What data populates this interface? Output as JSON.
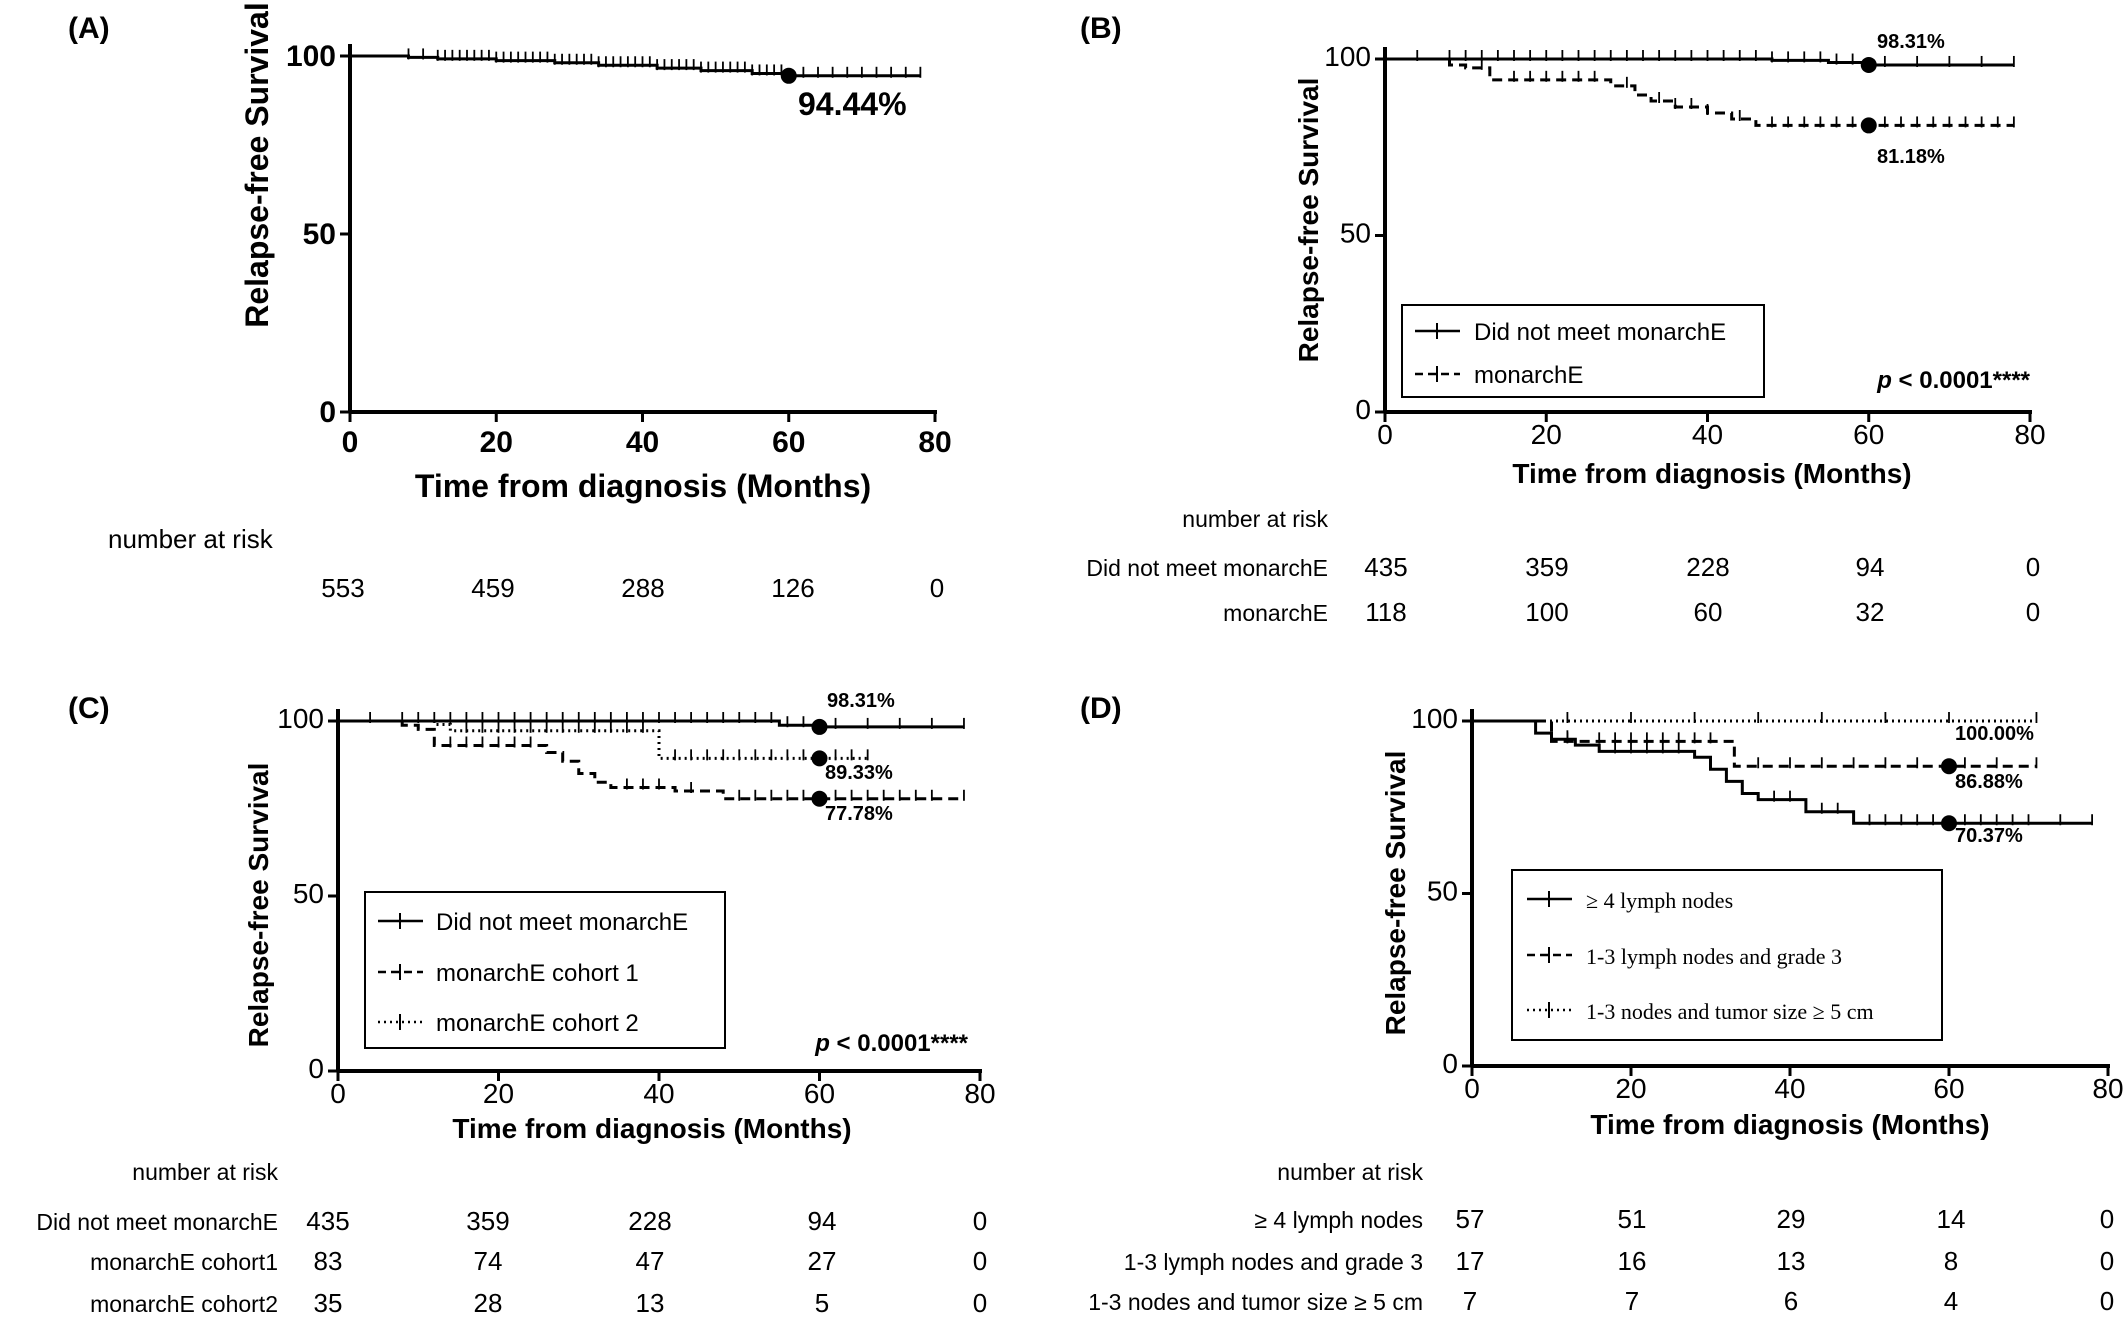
{
  "chart_data": [
    {
      "panel": "(A)",
      "type": "line",
      "title": "",
      "xlabel": "Time from diagnosis (Months)",
      "ylabel": "Relapse-free Survival",
      "xlim": [
        0,
        80
      ],
      "ylim": [
        0,
        100
      ],
      "xticks": [
        "0",
        "20",
        "40",
        "60",
        "80"
      ],
      "yticks": [
        "0",
        "50",
        "100"
      ],
      "series": [
        {
          "style": "solid",
          "x": [
            0,
            8,
            12,
            20,
            28,
            34,
            42,
            48,
            55,
            60,
            78
          ],
          "y": [
            100,
            99.6,
            99.2,
            98.7,
            98.1,
            97.4,
            96.6,
            95.9,
            95.1,
            94.44,
            94.44
          ],
          "censor_x": [
            8,
            10,
            12,
            13,
            14,
            15,
            16,
            17,
            18,
            19,
            20,
            21,
            22,
            23,
            24,
            25,
            26,
            27,
            28,
            29,
            30,
            31,
            32,
            33,
            34,
            35,
            36,
            37,
            38,
            39,
            40,
            41,
            42,
            43,
            44,
            45,
            46,
            47,
            48,
            49,
            50,
            51,
            52,
            53,
            54,
            55,
            56,
            57,
            58,
            59,
            62,
            64,
            66,
            68,
            70,
            72,
            74,
            76,
            78
          ]
        }
      ],
      "marker": {
        "x": 60,
        "y": 94.44
      },
      "annotations": [
        "94.44%"
      ],
      "risk_table": {
        "header": "number at risk",
        "rows": [
          {
            "label": "",
            "values": [
              "553",
              "459",
              "288",
              "126",
              "0"
            ]
          }
        ]
      }
    },
    {
      "panel": "(B)",
      "type": "line",
      "title": "",
      "xlabel": "Time from diagnosis (Months)",
      "ylabel": "Relapse-free Survival",
      "xlim": [
        0,
        80
      ],
      "ylim": [
        0,
        100
      ],
      "xticks": [
        "0",
        "20",
        "40",
        "60",
        "80"
      ],
      "yticks": [
        "0",
        "50",
        "100"
      ],
      "series": [
        {
          "name": "Did not meet monarchE",
          "style": "solid",
          "x": [
            0,
            48,
            55,
            60,
            78
          ],
          "y": [
            100,
            99.6,
            99,
            98.31,
            98.31
          ],
          "censor_x": [
            4,
            8,
            10,
            12,
            14,
            16,
            18,
            20,
            22,
            24,
            26,
            28,
            30,
            32,
            34,
            36,
            38,
            40,
            42,
            44,
            46,
            48,
            50,
            52,
            54,
            56,
            58,
            62,
            66,
            70,
            74,
            78
          ]
        },
        {
          "name": "monarchE",
          "style": "dashed",
          "x": [
            0,
            8,
            10,
            13,
            28,
            31,
            33,
            36,
            40,
            43,
            46,
            60,
            78
          ],
          "y": [
            100,
            98.3,
            97.5,
            94.1,
            92.4,
            89.8,
            88.1,
            86.4,
            84.7,
            83,
            81.18,
            81.18,
            81.18
          ],
          "censor_x": [
            12,
            16,
            18,
            20,
            22,
            24,
            26,
            30,
            34,
            36,
            38,
            40,
            44,
            48,
            50,
            52,
            54,
            56,
            58,
            62,
            64,
            66,
            68,
            70,
            72,
            74,
            76,
            78
          ]
        }
      ],
      "markers": [
        {
          "x": 60,
          "y": 98.31
        },
        {
          "x": 60,
          "y": 81.18
        }
      ],
      "annotations": [
        "98.31%",
        "81.18%"
      ],
      "pvalue": {
        "label": "p",
        "rest": " < 0.0001****"
      },
      "risk_table": {
        "header": "number at risk",
        "rows": [
          {
            "label": "Did not meet monarchE",
            "values": [
              "435",
              "359",
              "228",
              "94",
              "0"
            ]
          },
          {
            "label": "monarchE",
            "values": [
              "118",
              "100",
              "60",
              "32",
              "0"
            ]
          }
        ]
      }
    },
    {
      "panel": "(C)",
      "type": "line",
      "title": "",
      "xlabel": "Time from diagnosis (Months)",
      "ylabel": "Relapse-free Survival",
      "xlim": [
        0,
        80
      ],
      "ylim": [
        0,
        100
      ],
      "xticks": [
        "0",
        "20",
        "40",
        "60",
        "80"
      ],
      "yticks": [
        "0",
        "50",
        "100"
      ],
      "series": [
        {
          "name": "Did not meet monarchE",
          "style": "solid",
          "x": [
            0,
            55,
            60,
            78
          ],
          "y": [
            100,
            98.8,
            98.31,
            98.31
          ],
          "censor_x": [
            4,
            8,
            10,
            12,
            14,
            16,
            18,
            20,
            22,
            24,
            26,
            28,
            30,
            32,
            34,
            36,
            38,
            40,
            42,
            44,
            46,
            48,
            50,
            52,
            54,
            56,
            58,
            62,
            66,
            70,
            74,
            78
          ]
        },
        {
          "name": "monarchE cohort 1",
          "style": "dashed",
          "x": [
            0,
            8,
            10,
            12,
            26,
            28,
            30,
            32,
            34,
            42,
            48,
            60,
            78
          ],
          "y": [
            100,
            98.8,
            97.6,
            93,
            91,
            88.5,
            85,
            82.5,
            81,
            80,
            77.78,
            77.78,
            77.78
          ],
          "censor_x": [
            14,
            16,
            18,
            20,
            22,
            24,
            36,
            38,
            40,
            44,
            50,
            52,
            54,
            56,
            58,
            62,
            64,
            66,
            68,
            70,
            72,
            74,
            78
          ]
        },
        {
          "name": "monarchE cohort 2",
          "style": "dotted",
          "x": [
            0,
            12,
            14,
            40,
            60,
            66
          ],
          "y": [
            100,
            99,
            97.2,
            89.33,
            89.33,
            89.33
          ],
          "censor_x": [
            16,
            18,
            20,
            22,
            24,
            26,
            28,
            30,
            32,
            34,
            36,
            38,
            42,
            44,
            46,
            48,
            50,
            52,
            54,
            56,
            58,
            62,
            64,
            66
          ]
        }
      ],
      "markers": [
        {
          "x": 60,
          "y": 98.31
        },
        {
          "x": 60,
          "y": 89.33
        },
        {
          "x": 60,
          "y": 77.78
        }
      ],
      "annotations": [
        "98.31%",
        "89.33%",
        "77.78%"
      ],
      "pvalue": {
        "label": "p",
        "rest": " < 0.0001****"
      },
      "risk_table": {
        "header": "number at risk",
        "rows": [
          {
            "label": "Did not meet monarchE",
            "values": [
              "435",
              "359",
              "228",
              "94",
              "0"
            ]
          },
          {
            "label": "monarchE cohort1",
            "values": [
              "83",
              "74",
              "47",
              "27",
              "0"
            ]
          },
          {
            "label": "monarchE cohort2",
            "values": [
              "35",
              "28",
              "13",
              "5",
              "0"
            ]
          }
        ]
      }
    },
    {
      "panel": "(D)",
      "type": "line",
      "title": "",
      "xlabel": "Time from diagnosis (Months)",
      "ylabel": "Relapse-free Survival",
      "xlim": [
        0,
        80
      ],
      "ylim": [
        0,
        100
      ],
      "xticks": [
        "0",
        "20",
        "40",
        "60",
        "80"
      ],
      "yticks": [
        "0",
        "50",
        "100"
      ],
      "series": [
        {
          "name": "≥ 4 lymph nodes",
          "style": "solid",
          "x": [
            0,
            8,
            10,
            13,
            16,
            28,
            30,
            32,
            34,
            36,
            42,
            48,
            60,
            78
          ],
          "y": [
            100,
            96.5,
            94.7,
            93,
            91.2,
            89.5,
            86,
            82.5,
            79,
            77.2,
            73.7,
            70.37,
            70.37,
            70.37
          ],
          "censor_x": [
            12,
            18,
            20,
            22,
            24,
            26,
            38,
            40,
            44,
            46,
            50,
            52,
            54,
            56,
            58,
            62,
            64,
            66,
            68,
            70,
            74,
            78
          ]
        },
        {
          "name": "1-3 lymph nodes and grade 3",
          "style": "dashed",
          "x": [
            0,
            10,
            14,
            33,
            60,
            71
          ],
          "y": [
            100,
            94.1,
            94.1,
            86.88,
            86.88,
            86.88
          ],
          "censor_x": [
            12,
            16,
            18,
            20,
            22,
            24,
            26,
            28,
            30,
            36,
            40,
            44,
            48,
            52,
            56,
            62,
            66,
            71
          ]
        },
        {
          "name": "1-3 nodes and tumor size ≥ 5 cm",
          "style": "dotted",
          "x": [
            0,
            60,
            71
          ],
          "y": [
            100,
            100,
            100
          ],
          "censor_x": [
            12,
            20,
            28,
            36,
            44,
            52,
            60,
            71
          ]
        }
      ],
      "markers": [
        {
          "x": 60,
          "y": 86.88
        },
        {
          "x": 60,
          "y": 70.37
        }
      ],
      "annotations": [
        "100.00%",
        "86.88%",
        "70.37%"
      ],
      "risk_table": {
        "header": "number at risk",
        "rows": [
          {
            "label": "≥ 4 lymph nodes",
            "values": [
              "57",
              "51",
              "29",
              "14",
              "0"
            ]
          },
          {
            "label": "1-3 lymph nodes and grade 3",
            "values": [
              "17",
              "16",
              "13",
              "8",
              "0"
            ]
          },
          {
            "label": "1-3 nodes and tumor size ≥ 5 cm",
            "values": [
              "7",
              "7",
              "6",
              "4",
              "0"
            ]
          }
        ]
      }
    }
  ]
}
